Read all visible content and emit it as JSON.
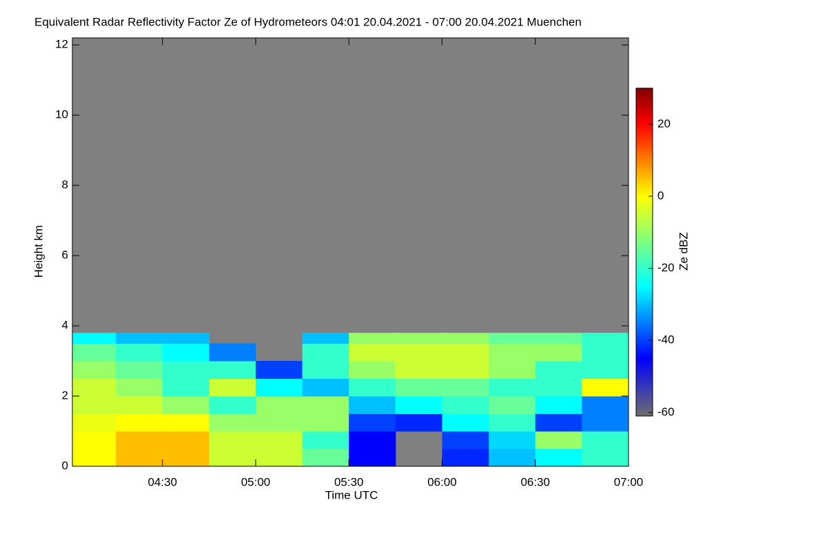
{
  "chart_data": {
    "type": "heatmap",
    "title": "Equivalent Radar Reflectivity Factor Ze of Hydrometeors   04:01 20.04.2021 - 07:00 20.04.2021 Muenchen",
    "x_label": "Time UTC",
    "y_label": "Height km",
    "colorbar_label": "Ze dBZ",
    "xlim": [
      241,
      420
    ],
    "xticks": [
      {
        "value": 270,
        "label": "04:30"
      },
      {
        "value": 300,
        "label": "05:00"
      },
      {
        "value": 330,
        "label": "05:30"
      },
      {
        "value": 360,
        "label": "06:00"
      },
      {
        "value": 390,
        "label": "06:30"
      },
      {
        "value": 420,
        "label": "07:00"
      }
    ],
    "ylim": [
      0,
      12.2
    ],
    "yticks": [
      0,
      2,
      4,
      6,
      8,
      10,
      12
    ],
    "x_edges": [
      241,
      255,
      270,
      285,
      300,
      315,
      330,
      345,
      360,
      375,
      390,
      405,
      420
    ],
    "y_edges": [
      0,
      0.5,
      1,
      1.5,
      2,
      2.5,
      3,
      3.5,
      3.8
    ],
    "z": [
      [
        0,
        5,
        5,
        -5,
        -5,
        -15,
        -45,
        null,
        -42,
        -30,
        -25,
        -20
      ],
      [
        0,
        5,
        5,
        -5,
        -5,
        -20,
        -45,
        null,
        -40,
        -28,
        -10,
        -20
      ],
      [
        -2,
        0,
        0,
        -10,
        -10,
        -10,
        -40,
        -42,
        -25,
        -20,
        -40,
        -35
      ],
      [
        -5,
        -5,
        -10,
        -20,
        -10,
        -10,
        -30,
        -25,
        -20,
        -15,
        -25,
        -35
      ],
      [
        -5,
        -10,
        -20,
        -5,
        -25,
        -30,
        -20,
        -15,
        -15,
        -20,
        -20,
        0
      ],
      [
        -10,
        -15,
        -20,
        -20,
        -40,
        -20,
        -10,
        -5,
        -5,
        -10,
        -20,
        -20
      ],
      [
        -15,
        -20,
        -25,
        -35,
        null,
        -20,
        -5,
        -5,
        -5,
        -10,
        -10,
        -20
      ],
      [
        -25,
        -30,
        -30,
        null,
        null,
        -30,
        -10,
        -10,
        -10,
        -15,
        -15,
        -20
      ]
    ],
    "zlim": [
      -61,
      30
    ],
    "zticks": [
      -60,
      -40,
      -20,
      0,
      20
    ],
    "colorscale": [
      {
        "value": -61,
        "color": "#6e6e6e"
      },
      {
        "value": -45,
        "color": "#0000ff"
      },
      {
        "value": -25,
        "color": "#00ffff"
      },
      {
        "value": 0,
        "color": "#ffff00"
      },
      {
        "value": 20,
        "color": "#ff0000"
      },
      {
        "value": 30,
        "color": "#800000"
      }
    ],
    "no_data_color": "#808080"
  }
}
